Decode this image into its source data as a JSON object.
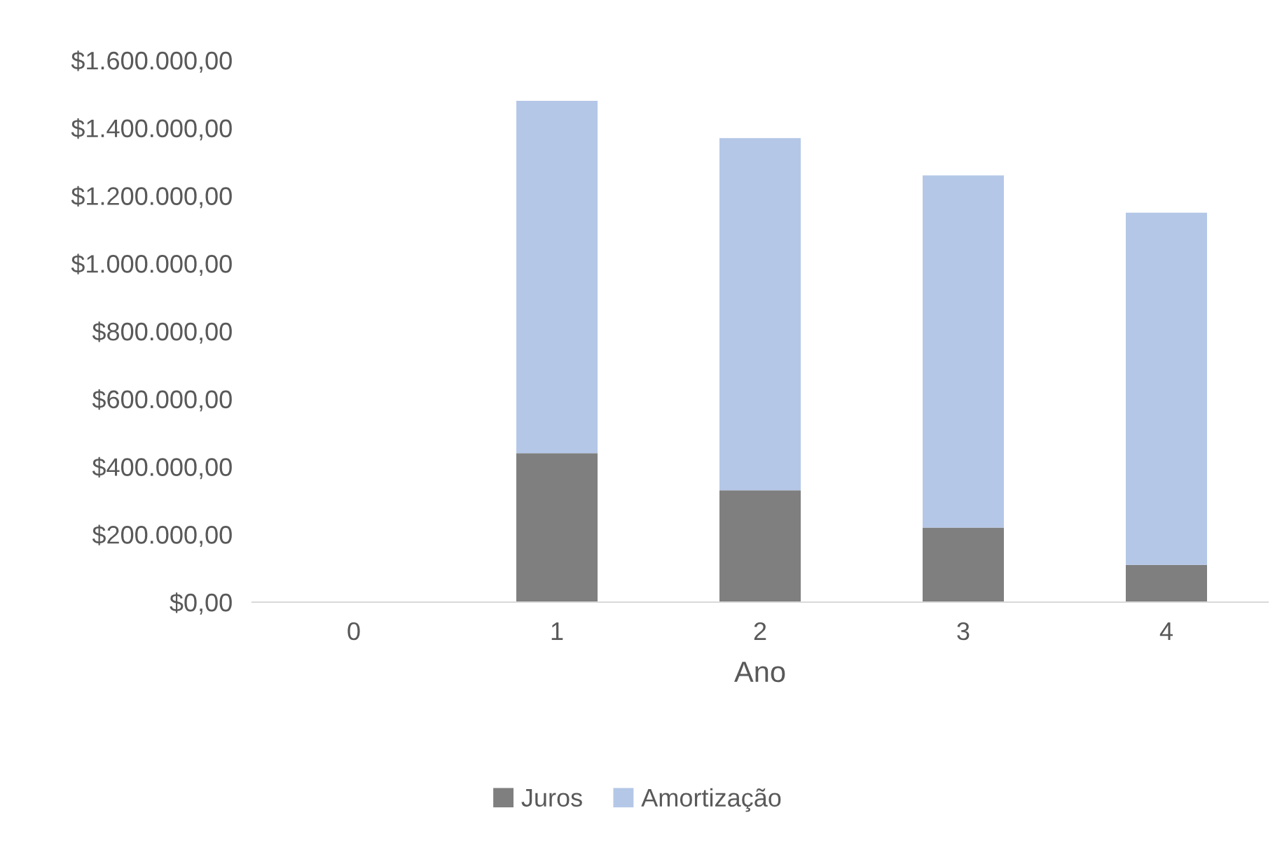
{
  "chart_data": {
    "type": "bar",
    "stacked": true,
    "xlabel": "Ano",
    "categories": [
      "0",
      "1",
      "2",
      "3",
      "4"
    ],
    "series": [
      {
        "name": "Juros",
        "color": "#7f7f7f",
        "values": [
          0,
          440000,
          330000,
          220000,
          110000
        ]
      },
      {
        "name": "Amortização",
        "color": "#b4c7e7",
        "values": [
          0,
          1040000,
          1040000,
          1040000,
          1040000
        ]
      }
    ],
    "ylim": [
      0,
      1600000
    ],
    "yticks": [
      {
        "value": 0,
        "label": "$0,00"
      },
      {
        "value": 200000,
        "label": "$200.000,00"
      },
      {
        "value": 400000,
        "label": "$400.000,00"
      },
      {
        "value": 600000,
        "label": "$600.000,00"
      },
      {
        "value": 800000,
        "label": "$800.000,00"
      },
      {
        "value": 1000000,
        "label": "$1.000.000,00"
      },
      {
        "value": 1200000,
        "label": "$1.200.000,00"
      },
      {
        "value": 1400000,
        "label": "$1.400.000,00"
      },
      {
        "value": 1600000,
        "label": "$1.600.000,00"
      }
    ],
    "grid": false,
    "legend": "bottom"
  }
}
